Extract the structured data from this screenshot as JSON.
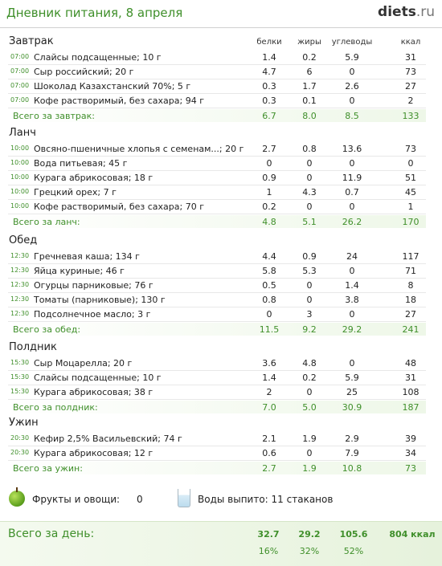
{
  "title": "Дневник питания, 8 апреля",
  "logo": {
    "name": "diets",
    "tld": ".ru"
  },
  "columns": [
    "белки",
    "жиры",
    "углеводы",
    "ккал"
  ],
  "meals": [
    {
      "name": "Завтрак",
      "items": [
        {
          "time": "07:00",
          "food": "Слайсы подсащенные; 10 г",
          "vals": [
            "1.4",
            "0.2",
            "5.9",
            "31"
          ]
        },
        {
          "time": "07:00",
          "food": "Сыр российский; 20 г",
          "vals": [
            "4.7",
            "6",
            "0",
            "73"
          ]
        },
        {
          "time": "07:00",
          "food": "Шоколад Казахстанский 70%; 5 г",
          "vals": [
            "0.3",
            "1.7",
            "2.6",
            "27"
          ]
        },
        {
          "time": "07:00",
          "food": "Кофе растворимый, без сахара; 94 г",
          "vals": [
            "0.3",
            "0.1",
            "0",
            "2"
          ]
        }
      ],
      "total_label": "Всего за завтрак:",
      "total": [
        "6.7",
        "8.0",
        "8.5",
        "133"
      ]
    },
    {
      "name": "Ланч",
      "items": [
        {
          "time": "10:00",
          "food": "Овсяно-пшеничные хлопья с семенам...; 20 г",
          "vals": [
            "2.7",
            "0.8",
            "13.6",
            "73"
          ]
        },
        {
          "time": "10:00",
          "food": "Вода питьевая; 45 г",
          "vals": [
            "0",
            "0",
            "0",
            "0"
          ]
        },
        {
          "time": "10:00",
          "food": "Курага абрикосовая; 18 г",
          "vals": [
            "0.9",
            "0",
            "11.9",
            "51"
          ]
        },
        {
          "time": "10:00",
          "food": "Грецкий орех; 7 г",
          "vals": [
            "1",
            "4.3",
            "0.7",
            "45"
          ]
        },
        {
          "time": "10:00",
          "food": "Кофе растворимый, без сахара; 70 г",
          "vals": [
            "0.2",
            "0",
            "0",
            "1"
          ]
        }
      ],
      "total_label": "Всего за ланч:",
      "total": [
        "4.8",
        "5.1",
        "26.2",
        "170"
      ]
    },
    {
      "name": "Обед",
      "items": [
        {
          "time": "12:30",
          "food": "Гречневая каша; 134 г",
          "vals": [
            "4.4",
            "0.9",
            "24",
            "117"
          ]
        },
        {
          "time": "12:30",
          "food": "Яйца куриные; 46 г",
          "vals": [
            "5.8",
            "5.3",
            "0",
            "71"
          ]
        },
        {
          "time": "12:30",
          "food": "Огурцы парниковые; 76 г",
          "vals": [
            "0.5",
            "0",
            "1.4",
            "8"
          ]
        },
        {
          "time": "12:30",
          "food": "Томаты (парниковые); 130 г",
          "vals": [
            "0.8",
            "0",
            "3.8",
            "18"
          ]
        },
        {
          "time": "12:30",
          "food": "Подсолнечное масло; 3 г",
          "vals": [
            "0",
            "3",
            "0",
            "27"
          ]
        }
      ],
      "total_label": "Всего за обед:",
      "total": [
        "11.5",
        "9.2",
        "29.2",
        "241"
      ]
    },
    {
      "name": "Полдник",
      "items": [
        {
          "time": "15:30",
          "food": "Сыр Моцарелла; 20 г",
          "vals": [
            "3.6",
            "4.8",
            "0",
            "48"
          ]
        },
        {
          "time": "15:30",
          "food": "Слайсы подсащенные; 10 г",
          "vals": [
            "1.4",
            "0.2",
            "5.9",
            "31"
          ]
        },
        {
          "time": "15:30",
          "food": "Курага абрикосовая; 38 г",
          "vals": [
            "2",
            "0",
            "25",
            "108"
          ]
        }
      ],
      "total_label": "Всего за полдник:",
      "total": [
        "7.0",
        "5.0",
        "30.9",
        "187"
      ]
    },
    {
      "name": "Ужин",
      "items": [
        {
          "time": "20:30",
          "food": "Кефир 2,5% Васильевский; 74 г",
          "vals": [
            "2.1",
            "1.9",
            "2.9",
            "39"
          ]
        },
        {
          "time": "20:30",
          "food": "Курага абрикосовая; 12 г",
          "vals": [
            "0.6",
            "0",
            "7.9",
            "34"
          ]
        }
      ],
      "total_label": "Всего за ужин:",
      "total": [
        "2.7",
        "1.9",
        "10.8",
        "73"
      ]
    }
  ],
  "fruits": {
    "label": "Фрукты и овощи:",
    "value": "0",
    "icon": "apple-icon"
  },
  "water": {
    "label": "Воды выпито: 11 стаканов",
    "icon": "water-glass-icon"
  },
  "day": {
    "label": "Всего за день:",
    "totals": [
      "32.7",
      "29.2",
      "105.6",
      "804 ккал"
    ],
    "percents": [
      "16%",
      "32%",
      "52%"
    ]
  },
  "colors": {
    "accent": "#3f8f2a"
  }
}
